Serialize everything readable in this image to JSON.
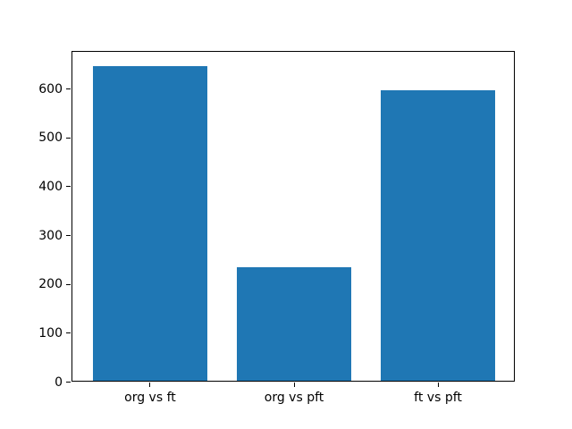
{
  "chart_data": {
    "type": "bar",
    "categories": [
      "org vs ft",
      "org vs pft",
      "ft vs pft"
    ],
    "values": [
      645,
      233,
      595
    ],
    "title": "",
    "xlabel": "",
    "ylabel": "",
    "ylim": [
      0,
      677.25
    ],
    "xlim": [
      -0.54,
      2.54
    ],
    "yticks": [
      0,
      100,
      200,
      300,
      400,
      500,
      600
    ],
    "bar_width": 0.8,
    "bar_color": "#1f77b4",
    "background_color": "#ffffff",
    "spine_color": "#000000",
    "text_color": "#000000",
    "grid": false,
    "legend": null
  }
}
